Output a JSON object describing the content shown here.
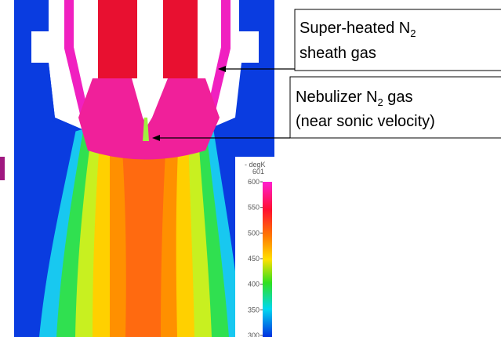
{
  "annotations": [
    {
      "text": "Super-heated N",
      "sub": "2",
      "line2": "sheath gas"
    },
    {
      "text": "Nebulizer N",
      "sub": "2",
      "after": " gas",
      "line2": "(near sonic velocity)"
    }
  ],
  "colorbar": {
    "title": "- degK",
    "max_label": "601",
    "ticks": [
      600,
      550,
      500,
      450,
      400,
      350,
      300
    ]
  }
}
